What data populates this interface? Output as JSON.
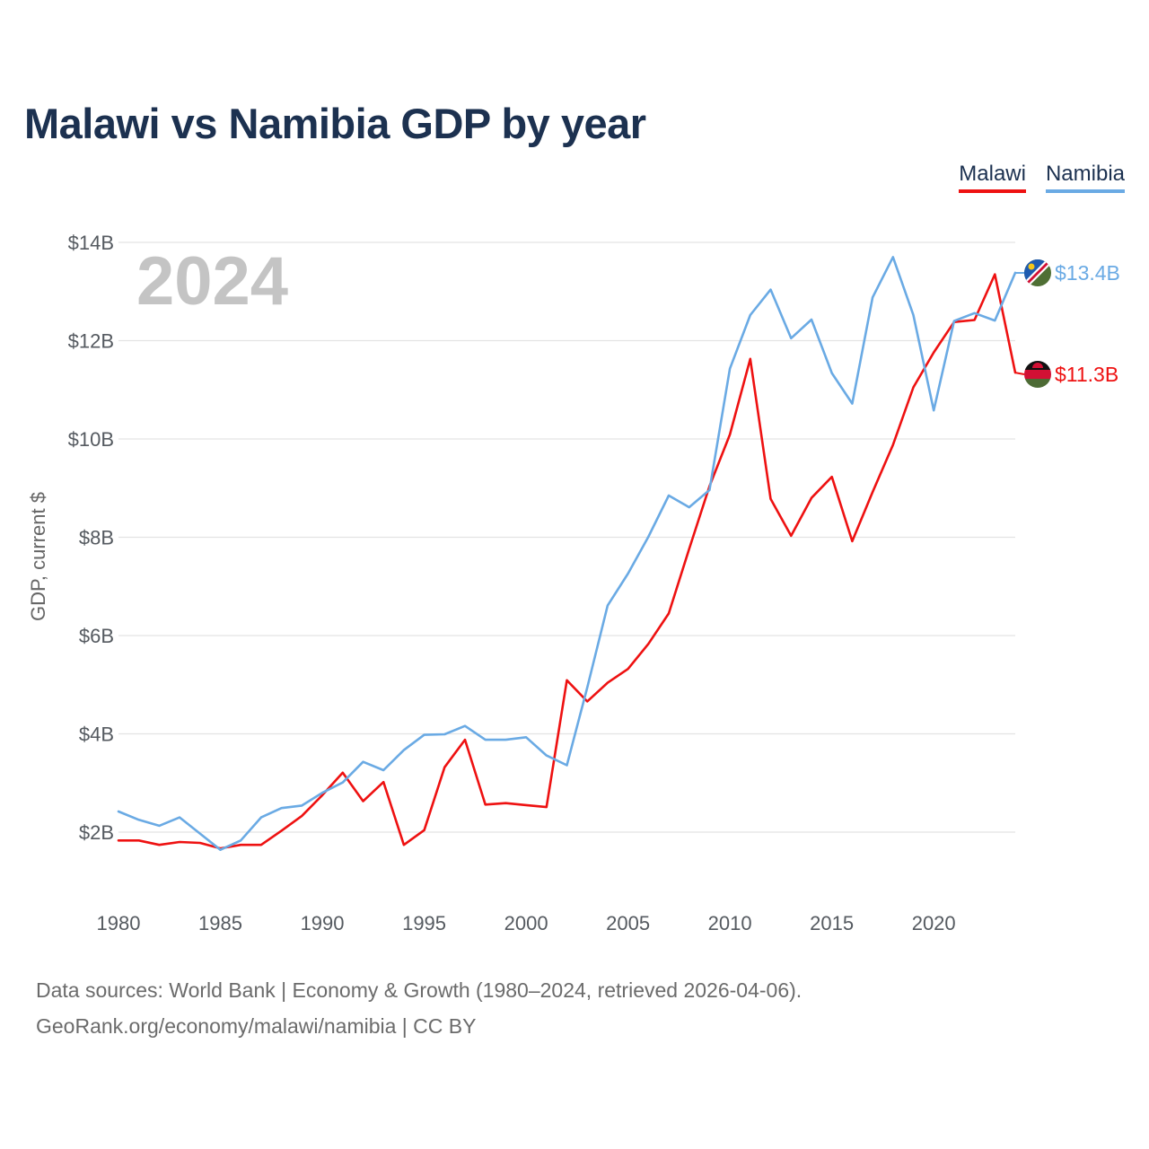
{
  "chart_data": {
    "type": "line",
    "title": "Malawi vs Namibia GDP by year",
    "ylabel": "GDP, current $",
    "xlabel": "",
    "year_label": "2024",
    "x": [
      1980,
      1981,
      1982,
      1983,
      1984,
      1985,
      1986,
      1987,
      1988,
      1989,
      1990,
      1991,
      1992,
      1993,
      1994,
      1995,
      1996,
      1997,
      1998,
      1999,
      2000,
      2001,
      2002,
      2003,
      2004,
      2005,
      2006,
      2007,
      2008,
      2009,
      2010,
      2011,
      2012,
      2013,
      2014,
      2015,
      2016,
      2017,
      2018,
      2019,
      2020,
      2021,
      2022,
      2023,
      2024
    ],
    "xlim": [
      1980,
      2024
    ],
    "ylim": [
      0.8,
      14
    ],
    "x_ticks": [
      1980,
      1985,
      1990,
      1995,
      2000,
      2005,
      2010,
      2015,
      2020
    ],
    "x_tick_labels": [
      "1980",
      "1985",
      "1990",
      "1995",
      "2000",
      "2005",
      "2010",
      "2015",
      "2020"
    ],
    "y_ticks": [
      2,
      4,
      6,
      8,
      10,
      12,
      14
    ],
    "y_tick_labels": [
      "$2B",
      "$4B",
      "$6B",
      "$8B",
      "$10B",
      "$12B",
      "$14B"
    ],
    "grid": true,
    "legend_position": "top-right",
    "series": [
      {
        "name": "Malawi",
        "color": "#ee1111",
        "end_label": "$11.3B",
        "flag": "malawi-flag",
        "values": [
          1.83,
          1.83,
          1.74,
          1.8,
          1.78,
          1.67,
          1.74,
          1.74,
          2.03,
          2.33,
          2.75,
          3.21,
          2.63,
          3.02,
          1.74,
          2.04,
          3.32,
          3.88,
          2.56,
          2.59,
          2.55,
          2.51,
          5.09,
          4.66,
          5.04,
          5.32,
          5.83,
          6.45,
          7.76,
          9.04,
          10.09,
          11.63,
          8.78,
          8.03,
          8.8,
          9.23,
          7.92,
          8.92,
          9.88,
          11.05,
          11.76,
          12.38,
          12.42,
          13.35,
          11.35
        ]
      },
      {
        "name": "Namibia",
        "color": "#6aaae4",
        "end_label": "$13.4B",
        "flag": "namibia-flag",
        "values": [
          2.42,
          2.25,
          2.13,
          2.3,
          1.97,
          1.64,
          1.83,
          2.3,
          2.49,
          2.54,
          2.8,
          3.01,
          3.43,
          3.26,
          3.67,
          3.98,
          3.99,
          4.16,
          3.88,
          3.88,
          3.93,
          3.56,
          3.36,
          4.94,
          6.61,
          7.26,
          8.01,
          8.85,
          8.61,
          8.96,
          11.43,
          12.52,
          13.04,
          12.05,
          12.43,
          11.34,
          10.72,
          12.88,
          13.7,
          12.52,
          10.58,
          12.4,
          12.56,
          12.41,
          13.38
        ]
      }
    ]
  },
  "legend": {
    "items": [
      {
        "label": "Malawi",
        "color": "#ee1111"
      },
      {
        "label": "Namibia",
        "color": "#6aaae4"
      }
    ]
  },
  "footer": {
    "source_line": "Data sources: World Bank | Economy & Growth (1980–2024, retrieved 2026-04-06).",
    "credit_line": "GeoRank.org/economy/malawi/namibia | CC BY"
  }
}
